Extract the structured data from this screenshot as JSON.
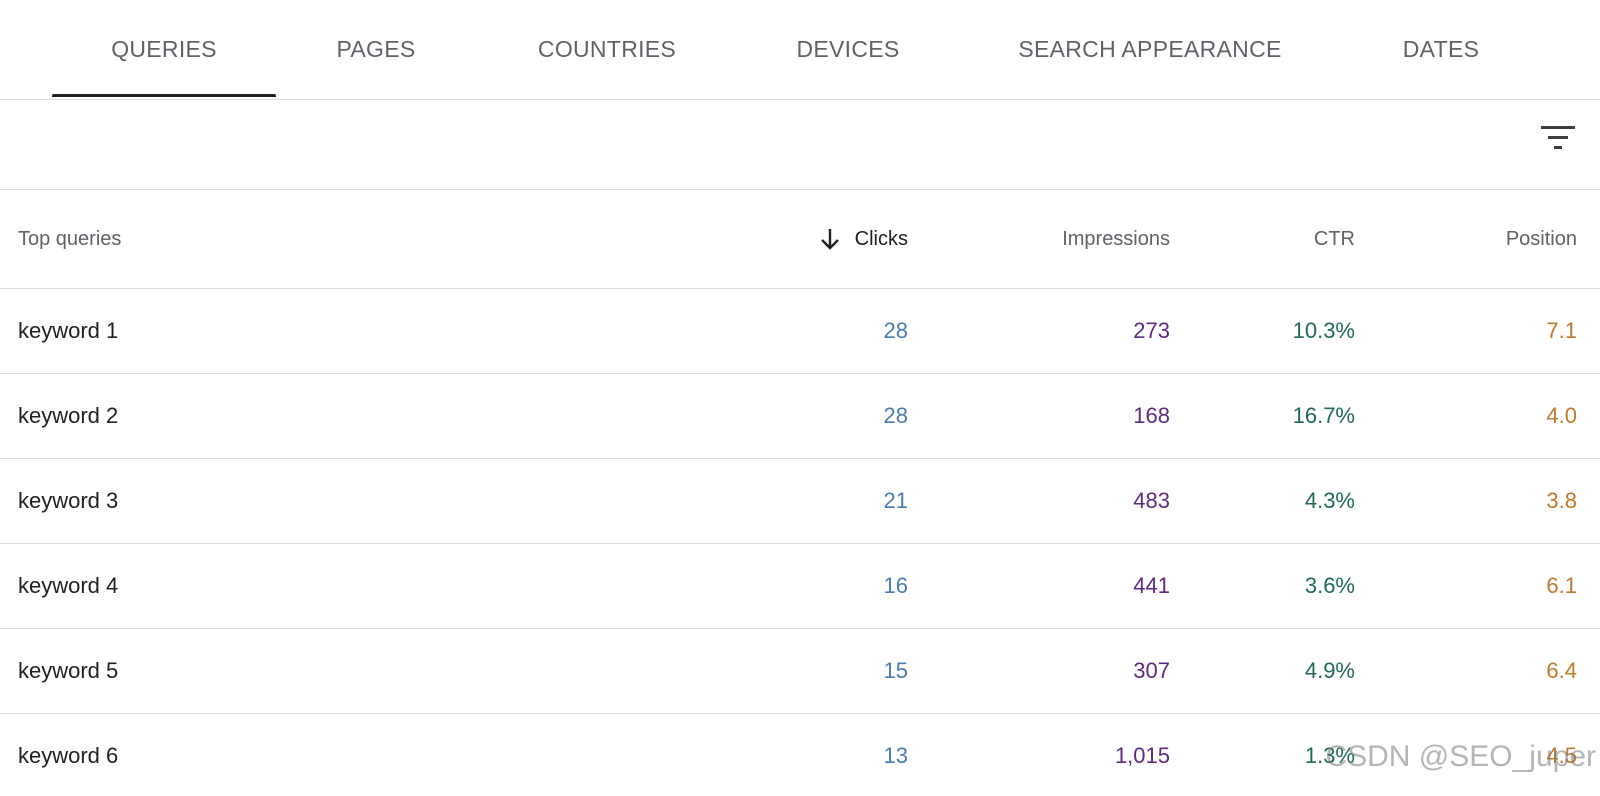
{
  "tabs": [
    {
      "label": "QUERIES",
      "selected": true
    },
    {
      "label": "PAGES"
    },
    {
      "label": "COUNTRIES"
    },
    {
      "label": "DEVICES"
    },
    {
      "label": "SEARCH APPEARANCE"
    },
    {
      "label": "DATES"
    }
  ],
  "filter": {
    "icon": "filter-icon"
  },
  "table": {
    "headers": {
      "query": "Top queries",
      "clicks": "Clicks",
      "impressions": "Impressions",
      "ctr": "CTR",
      "position": "Position"
    },
    "sort_icon": "arrow-down-icon",
    "rows": [
      {
        "query": "keyword 1",
        "clicks": "28",
        "impressions": "273",
        "ctr": "10.3%",
        "position": "7.1"
      },
      {
        "query": "keyword 2",
        "clicks": "28",
        "impressions": "168",
        "ctr": "16.7%",
        "position": "4.0"
      },
      {
        "query": "keyword 3",
        "clicks": "21",
        "impressions": "483",
        "ctr": "4.3%",
        "position": "3.8"
      },
      {
        "query": "keyword 4",
        "clicks": "16",
        "impressions": "441",
        "ctr": "3.6%",
        "position": "6.1"
      },
      {
        "query": "keyword 5",
        "clicks": "15",
        "impressions": "307",
        "ctr": "4.9%",
        "position": "6.4"
      },
      {
        "query": "keyword 6",
        "clicks": "13",
        "impressions": "1,015",
        "ctr": "1.3%",
        "position": "4.5"
      }
    ]
  },
  "colors": {
    "clicks": "#4a7bb0",
    "impressions": "#5e2a84",
    "ctr": "#1e6b52",
    "position": "#c0782a",
    "active_tab_indicator": "#202124"
  },
  "watermark": "CSDN @SEO_juper"
}
